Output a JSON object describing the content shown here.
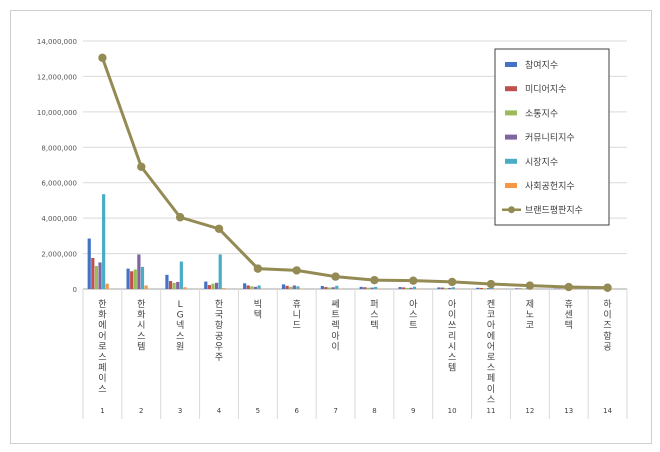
{
  "chart_data": {
    "type": "bar",
    "combo": "bar+line",
    "title": "",
    "xlabel": "",
    "ylabel": "",
    "ylim": [
      0,
      14000000
    ],
    "yticks": [
      "0",
      "2,000,000",
      "4,000,000",
      "6,000,000",
      "8,000,000",
      "10,000,000",
      "12,000,000",
      "14,000,000"
    ],
    "yticks_values": [
      0,
      2000000,
      4000000,
      6000000,
      8000000,
      10000000,
      12000000,
      14000000
    ],
    "legend_position": "top-right",
    "grid": true,
    "categories": [
      "한화에어로스페이스",
      "한화시스템",
      "LG넥스원",
      "한국항공우주",
      "빅텍",
      "휴니드",
      "쎄트렉아이",
      "퍼스텍",
      "아스트",
      "아이쓰리시스템",
      "켄코아에어로스페이스",
      "제노코",
      "휴센텍",
      "하이즈항공"
    ],
    "ranks": [
      "1",
      "2",
      "3",
      "4",
      "5",
      "6",
      "7",
      "8",
      "9",
      "10",
      "11",
      "12",
      "13",
      "14"
    ],
    "series": [
      {
        "name": "참여지수",
        "color": "#4472C4",
        "type": "bar",
        "values": [
          2850000,
          1150000,
          800000,
          420000,
          320000,
          260000,
          170000,
          120000,
          110000,
          90000,
          70000,
          40000,
          30000,
          25000
        ]
      },
      {
        "name": "미디어지수",
        "color": "#C0504D",
        "type": "bar",
        "values": [
          1750000,
          1000000,
          450000,
          220000,
          200000,
          180000,
          110000,
          100000,
          90000,
          80000,
          60000,
          35000,
          25000,
          20000
        ]
      },
      {
        "name": "소통지수",
        "color": "#9BBB59",
        "type": "bar",
        "values": [
          1300000,
          1100000,
          350000,
          300000,
          150000,
          120000,
          80000,
          70000,
          60000,
          50000,
          40000,
          30000,
          20000,
          15000
        ]
      },
      {
        "name": "커뮤니티지수",
        "color": "#8064A2",
        "type": "bar",
        "values": [
          1500000,
          1950000,
          400000,
          350000,
          120000,
          200000,
          100000,
          80000,
          70000,
          60000,
          50000,
          30000,
          20000,
          15000
        ]
      },
      {
        "name": "시장지수",
        "color": "#4BACC6",
        "type": "bar",
        "values": [
          5350000,
          1250000,
          1550000,
          1950000,
          200000,
          150000,
          180000,
          120000,
          130000,
          100000,
          80000,
          50000,
          30000,
          25000
        ]
      },
      {
        "name": "사회공헌지수",
        "color": "#F79646",
        "type": "bar",
        "values": [
          300000,
          200000,
          100000,
          50000,
          20000,
          20000,
          15000,
          10000,
          10000,
          10000,
          5000,
          5000,
          5000,
          5000
        ]
      },
      {
        "name": "브랜드평판지수",
        "color": "#948A54",
        "type": "line",
        "values": [
          13050000,
          6900000,
          4050000,
          3400000,
          1150000,
          1050000,
          700000,
          500000,
          470000,
          400000,
          280000,
          190000,
          110000,
          70000
        ]
      }
    ]
  }
}
